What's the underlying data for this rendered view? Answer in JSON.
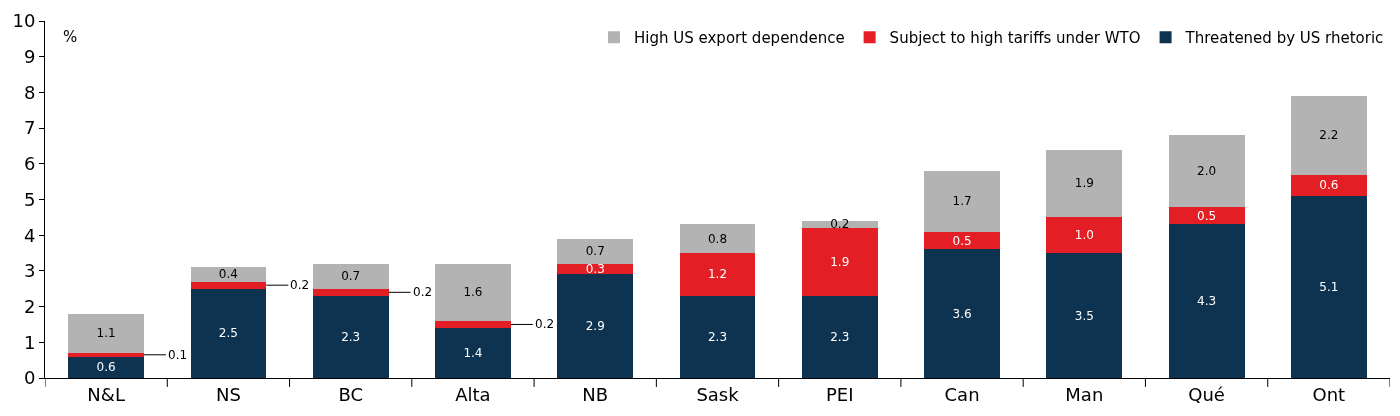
{
  "chart_data": {
    "type": "bar",
    "stacked": true,
    "ylabel": "%",
    "categories": [
      "N&L",
      "NS",
      "BC",
      "Alta",
      "NB",
      "Sask",
      "PEI",
      "Can",
      "Man",
      "Qué",
      "Ont"
    ],
    "series": [
      {
        "name": "Threatened by US rhetoric",
        "color": "#0d3350",
        "values": [
          0.6,
          2.5,
          2.3,
          1.4,
          2.9,
          2.3,
          2.3,
          3.6,
          3.5,
          4.3,
          5.1
        ],
        "value_labels": [
          "0.6",
          "2.5",
          "2.3",
          "1.4",
          "2.9",
          "2.3",
          "2.3",
          "3.6",
          "3.5",
          "4.3",
          "5.1"
        ]
      },
      {
        "name": "Subject to high tariffs under WTO",
        "color": "#e31e24",
        "values": [
          0.1,
          0.2,
          0.2,
          0.2,
          0.3,
          1.2,
          1.9,
          0.5,
          1.0,
          0.5,
          0.6
        ],
        "value_labels": [
          "0.1",
          "0.2",
          "0.2",
          "0.2",
          "0.3",
          "1.2",
          "1.9",
          "0.5",
          "1.0",
          "0.5",
          "0.6"
        ]
      },
      {
        "name": "High US export dependence",
        "color": "#b3b3b3",
        "values": [
          1.1,
          0.4,
          0.7,
          1.6,
          0.7,
          0.8,
          0.2,
          1.7,
          1.9,
          2.0,
          2.2
        ],
        "value_labels": [
          "1.1",
          "0.4",
          "0.7",
          "1.6",
          "0.7",
          "0.8",
          "0.2",
          "1.7",
          "1.9",
          "2.0",
          "2.2"
        ]
      }
    ],
    "ylim": [
      0,
      10
    ],
    "yticks": [
      0,
      1,
      2,
      3,
      4,
      5,
      6,
      7,
      8,
      9,
      10
    ],
    "legend": "top right",
    "data_labels": true
  }
}
